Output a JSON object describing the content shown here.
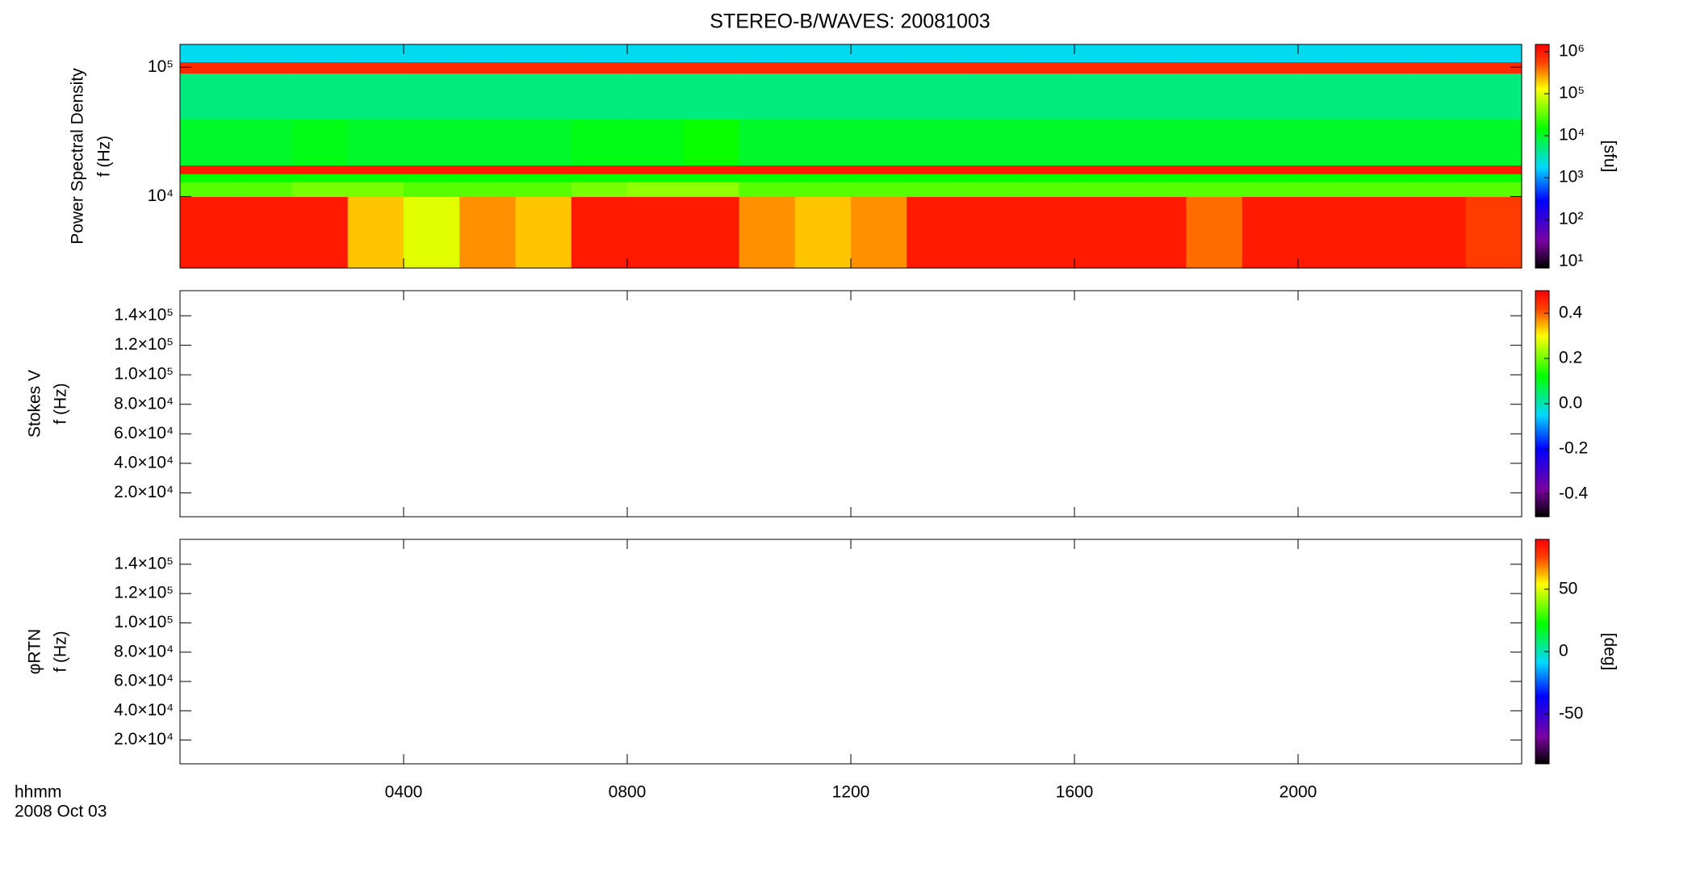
{
  "title": "STEREO-B/WAVES: 20081003",
  "time_axis": {
    "xlim": [
      0,
      24
    ],
    "xticks": [
      {
        "value": 4,
        "label": "0400"
      },
      {
        "value": 8,
        "label": "0800"
      },
      {
        "value": 12,
        "label": "1200"
      },
      {
        "value": 16,
        "label": "1600"
      },
      {
        "value": 20,
        "label": "2000"
      }
    ],
    "labels": [
      "hhmm",
      "2008 Oct 03"
    ]
  },
  "chart_data": [
    {
      "type": "heatmap",
      "ylabel": [
        "Power Spectral Density",
        "f (Hz)"
      ],
      "log_y": true,
      "ylim": [
        2800,
        150000
      ],
      "yticks": [
        {
          "value": 10000,
          "label": "10⁴"
        },
        {
          "value": 100000,
          "label": "10⁵"
        }
      ],
      "x": [
        0,
        1,
        2,
        3,
        4,
        5,
        6,
        7,
        8,
        9,
        10,
        11,
        12,
        13,
        14,
        15,
        16,
        17,
        18,
        19,
        20,
        21,
        22,
        23,
        24
      ],
      "y": [
        2800,
        10000,
        13000,
        15000,
        17500,
        40000,
        90000,
        110000,
        150000
      ],
      "z": [
        [
          1000000,
          1000000,
          1000000,
          200000,
          100000,
          300000,
          200000,
          1000000,
          1000000,
          1000000,
          300000,
          200000,
          300000,
          1000000,
          1000000,
          1000000,
          1000000,
          1000000,
          400000,
          1000000,
          1000000,
          1000000,
          1000000,
          600000
        ],
        [
          30000,
          30000,
          40000,
          40000,
          30000,
          30000,
          30000,
          40000,
          50000,
          50000,
          30000,
          30000,
          30000,
          30000,
          30000,
          30000,
          30000,
          30000,
          30000,
          30000,
          30000,
          30000,
          30000,
          30000
        ],
        [
          15000,
          15000,
          15000,
          15000,
          15000,
          15000,
          15000,
          15000,
          15000,
          15000,
          15000,
          15000,
          15000,
          15000,
          15000,
          15000,
          15000,
          15000,
          15000,
          15000,
          15000,
          15000,
          15000,
          15000
        ],
        [
          1000000,
          1000000,
          1000000,
          1000000,
          1000000,
          1000000,
          1000000,
          1000000,
          1000000,
          1000000,
          1000000,
          1000000,
          1000000,
          1000000,
          1000000,
          1000000,
          1000000,
          1000000,
          1000000,
          1000000,
          1000000,
          1000000,
          1000000,
          1000000
        ],
        [
          10000,
          10000,
          12000,
          10000,
          10000,
          10000,
          10000,
          12000,
          12000,
          15000,
          10000,
          10000,
          10000,
          10000,
          10000,
          10000,
          10000,
          10000,
          10000,
          10000,
          10000,
          10000,
          10000,
          10000
        ],
        [
          5000,
          5000,
          5000,
          5000,
          5000,
          5000,
          5000,
          5000,
          5000,
          5000,
          5000,
          5000,
          5000,
          5000,
          5000,
          5000,
          5000,
          5000,
          5000,
          5000,
          5000,
          5000,
          5000,
          5000
        ],
        [
          800000,
          800000,
          800000,
          800000,
          800000,
          800000,
          800000,
          800000,
          800000,
          800000,
          800000,
          800000,
          800000,
          800000,
          800000,
          800000,
          800000,
          800000,
          800000,
          800000,
          800000,
          800000,
          800000,
          800000
        ],
        [
          2000,
          2000,
          2000,
          2000,
          2000,
          2000,
          2000,
          2000,
          2000,
          2000,
          2000,
          2000,
          2000,
          2000,
          2000,
          2000,
          2000,
          2000,
          2000,
          2000,
          2000,
          2000,
          2000,
          2000
        ]
      ],
      "clim": [
        7,
        1500000
      ],
      "log_c": true,
      "cticks": [
        {
          "value": 10,
          "label": "10¹"
        },
        {
          "value": 100,
          "label": "10²"
        },
        {
          "value": 1000,
          "label": "10³"
        },
        {
          "value": 10000,
          "label": "10⁴"
        },
        {
          "value": 100000,
          "label": "10⁵"
        },
        {
          "value": 1000000,
          "label": "10⁶"
        }
      ],
      "clabel": "[sfu]"
    },
    {
      "type": "heatmap",
      "ylabel": [
        "Stokes V",
        "f (Hz)"
      ],
      "ylim": [
        3800,
        157000
      ],
      "yticks": [
        {
          "value": 20000,
          "label": "2.0×10⁴"
        },
        {
          "value": 40000,
          "label": "4.0×10⁴"
        },
        {
          "value": 60000,
          "label": "6.0×10⁴"
        },
        {
          "value": 80000,
          "label": "8.0×10⁴"
        },
        {
          "value": 100000,
          "label": "1.0×10⁵"
        },
        {
          "value": 120000,
          "label": "1.2×10⁵"
        },
        {
          "value": 140000,
          "label": "1.4×10⁵"
        }
      ],
      "clim": [
        -0.5,
        0.5
      ],
      "cticks": [
        -0.4,
        -0.2,
        {
          "value": 0,
          "label": "0.0"
        },
        0.2,
        0.4
      ]
    },
    {
      "type": "heatmap",
      "ylabel": [
        "φRTN",
        "f (Hz)"
      ],
      "ylim": [
        3800,
        157000
      ],
      "yticks": [
        {
          "value": 20000,
          "label": "2.0×10⁴"
        },
        {
          "value": 40000,
          "label": "4.0×10⁴"
        },
        {
          "value": 60000,
          "label": "6.0×10⁴"
        },
        {
          "value": 80000,
          "label": "8.0×10⁴"
        },
        {
          "value": 100000,
          "label": "1.0×10⁵"
        },
        {
          "value": 120000,
          "label": "1.2×10⁵"
        },
        {
          "value": 140000,
          "label": "1.4×10⁵"
        }
      ],
      "clim": [
        -90,
        90
      ],
      "cticks": [
        -50,
        0,
        50
      ],
      "clabel": "[deg]"
    }
  ]
}
